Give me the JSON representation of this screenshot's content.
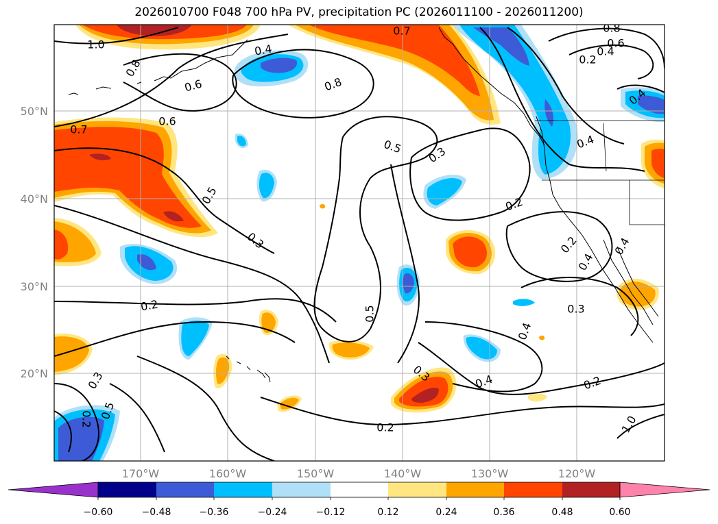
{
  "title": "2026010700 F048 700 hPa PV, precipitation PC (2026011100 - 2026011200)",
  "colors": {
    "neg_060": "#9932cc",
    "neg_048": "#00008b",
    "neg_036": "#3d5bd6",
    "neg_024": "#00bfff",
    "neg_012": "#b0e0f8",
    "zero": "#ffffff",
    "pos_012": "#ffe680",
    "pos_024": "#ffa500",
    "pos_036": "#ff4500",
    "pos_048": "#b22222",
    "pos_060": "#ff82ab",
    "contour": "#000000",
    "grid": "#b0b0b0"
  },
  "chart_data": {
    "type": "heatmap",
    "title": "2026010700 F048 700 hPa PV, precipitation PC (2026011100 - 2026011200)",
    "x_ticks": [
      "170°W",
      "160°W",
      "150°W",
      "140°W",
      "130°W",
      "120°W"
    ],
    "y_ticks": [
      "50°N",
      "40°N",
      "30°N",
      "20°N"
    ],
    "colorbar_ticks": [
      "−0.60",
      "−0.48",
      "−0.36",
      "−0.24",
      "−0.12",
      "0.12",
      "0.24",
      "0.36",
      "0.48",
      "0.60"
    ],
    "colorbar_levels": [
      -0.6,
      -0.48,
      -0.36,
      -0.24,
      -0.12,
      0.12,
      0.24,
      0.36,
      0.48,
      0.6
    ],
    "grid": true,
    "contour_labels": [
      "1.0",
      "0.8",
      "0.7",
      "0.6",
      "0.8",
      "0.4",
      "0.7",
      "0.6",
      "0.5",
      "0.3",
      "0.5",
      "0.3",
      "0.2",
      "0.2",
      "0.5",
      "0.4",
      "0.2",
      "0.4",
      "0.4",
      "0.3",
      "0.4",
      "0.3",
      "0.5",
      "0.2",
      "0.2",
      "0.3",
      "0.2",
      "1.0",
      "0.8",
      "0.6",
      "0.4",
      "0.2",
      "0.4",
      "0.4"
    ]
  }
}
